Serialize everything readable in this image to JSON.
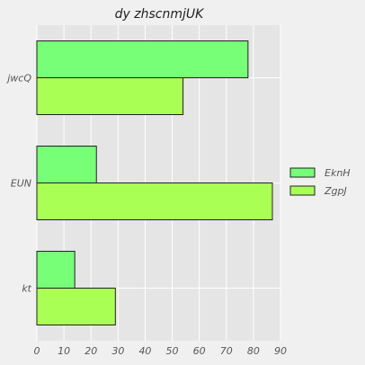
{
  "chart_data": {
    "type": "bar",
    "orientation": "horizontal",
    "title": "dy   zhscnmjUK",
    "xlabel": "",
    "ylabel": "",
    "categories": [
      "jwcQ",
      "EUN",
      "kt"
    ],
    "series": [
      {
        "name": "EknH",
        "values": [
          78,
          22,
          14
        ],
        "color": "#77ff77"
      },
      {
        "name": "ZgpJ",
        "values": [
          54,
          87,
          29
        ],
        "color": "#aaff55"
      }
    ],
    "xlim": [
      0,
      90
    ],
    "xticks": [
      0,
      10,
      20,
      30,
      40,
      50,
      60,
      70,
      80,
      90
    ],
    "grid": true,
    "legend": "right",
    "colors": {
      "plot_bg": "#e5e5e5",
      "page_bg": "#f0f0f0",
      "grid": "#ffffff",
      "bar_edge": "#222222"
    }
  }
}
